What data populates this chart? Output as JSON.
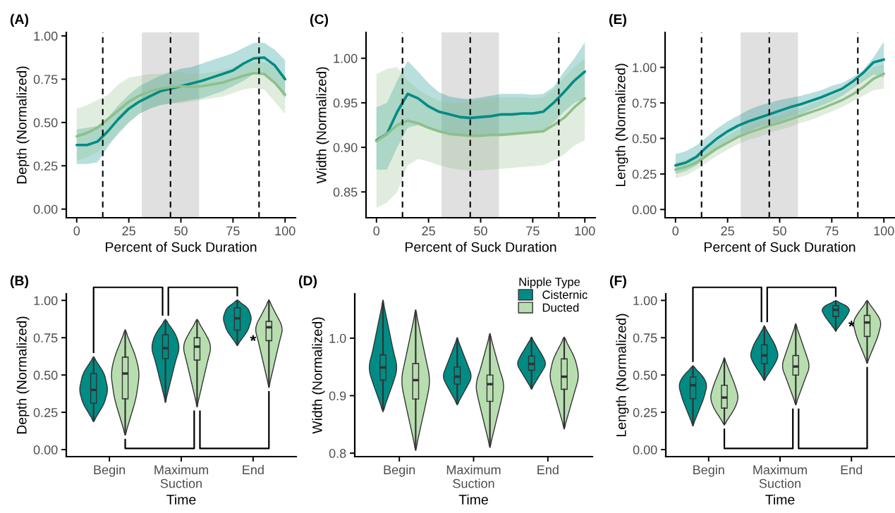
{
  "chart_data": [
    {
      "type": "line",
      "title": "(A)",
      "xlabel": "Percent of Suck Duration",
      "ylabel": "Depth (Normalized)",
      "xlim": [
        -5,
        105
      ],
      "xticks": [
        0,
        25,
        50,
        75,
        100
      ],
      "ylim": [
        -0.05,
        1.02
      ],
      "yticks": [
        {
          "value": 0,
          "label": "0.00"
        },
        {
          "value": 0.25,
          "label": "0.25"
        },
        {
          "value": 0.5,
          "label": "0.50"
        },
        {
          "value": 0.75,
          "label": "0.75"
        },
        {
          "value": 1,
          "label": "1.00"
        }
      ],
      "grid": false,
      "legend": false,
      "x": [
        0,
        5,
        10,
        15,
        20,
        25,
        30,
        35,
        40,
        45,
        50,
        55,
        60,
        65,
        70,
        75,
        80,
        85,
        90,
        95,
        100
      ],
      "series": [
        {
          "color": "#008b84",
          "values": [
            0.37,
            0.37,
            0.39,
            0.45,
            0.52,
            0.58,
            0.62,
            0.65,
            0.68,
            0.695,
            0.71,
            0.725,
            0.74,
            0.76,
            0.78,
            0.8,
            0.84,
            0.87,
            0.875,
            0.83,
            0.75
          ],
          "lower": [
            0.26,
            0.26,
            0.27,
            0.36,
            0.44,
            0.5,
            0.55,
            0.58,
            0.6,
            0.61,
            0.62,
            0.63,
            0.64,
            0.66,
            0.68,
            0.71,
            0.74,
            0.78,
            0.78,
            0.73,
            0.64
          ],
          "upper": [
            0.46,
            0.47,
            0.48,
            0.53,
            0.6,
            0.66,
            0.71,
            0.74,
            0.77,
            0.79,
            0.81,
            0.82,
            0.84,
            0.86,
            0.88,
            0.9,
            0.93,
            0.96,
            0.96,
            0.92,
            0.86
          ]
        },
        {
          "color": "#8fbf8a",
          "values": [
            0.42,
            0.44,
            0.47,
            0.52,
            0.57,
            0.62,
            0.655,
            0.68,
            0.695,
            0.705,
            0.71,
            0.705,
            0.71,
            0.72,
            0.73,
            0.75,
            0.77,
            0.785,
            0.78,
            0.73,
            0.66
          ],
          "lower": [
            0.28,
            0.3,
            0.33,
            0.38,
            0.43,
            0.5,
            0.55,
            0.58,
            0.6,
            0.61,
            0.61,
            0.62,
            0.63,
            0.64,
            0.65,
            0.67,
            0.69,
            0.7,
            0.69,
            0.62,
            0.55
          ],
          "upper": [
            0.58,
            0.6,
            0.63,
            0.66,
            0.72,
            0.76,
            0.77,
            0.78,
            0.78,
            0.79,
            0.79,
            0.78,
            0.78,
            0.79,
            0.8,
            0.82,
            0.84,
            0.85,
            0.85,
            0.82,
            0.77
          ]
        }
      ],
      "ref_lines": [
        {
          "axis": "x",
          "value": 12.5,
          "color": "#000000",
          "line_style": "dashed"
        },
        {
          "axis": "x",
          "value": 45,
          "color": "#000000",
          "line_style": "dashed"
        },
        {
          "axis": "x",
          "value": 87.5,
          "color": "#000000",
          "line_style": "dashed"
        }
      ],
      "bands": [
        {
          "axis": "x",
          "from": 31.25,
          "to": 58.75,
          "color": "#e0e0e0"
        }
      ]
    },
    {
      "type": "line",
      "title": "(C)",
      "xlabel": "Percent of Suck Duration",
      "ylabel": "Width (Normalized)",
      "xlim": [
        -5,
        105
      ],
      "xticks": [
        0,
        25,
        50,
        75,
        100
      ],
      "ylim": [
        0.821,
        1.029
      ],
      "yticks": [
        {
          "value": 0.85,
          "label": "0.85"
        },
        {
          "value": 0.9,
          "label": "0.90"
        },
        {
          "value": 0.95,
          "label": "0.95"
        },
        {
          "value": 1,
          "label": "1.00"
        }
      ],
      "grid": false,
      "legend": false,
      "x": [
        0,
        5,
        10,
        15,
        20,
        25,
        30,
        35,
        40,
        45,
        50,
        55,
        60,
        65,
        70,
        75,
        80,
        85,
        90,
        95,
        100
      ],
      "series": [
        {
          "color": "#008b84",
          "values": [
            0.908,
            0.915,
            0.94,
            0.96,
            0.955,
            0.946,
            0.94,
            0.937,
            0.934,
            0.933,
            0.934,
            0.935,
            0.937,
            0.937,
            0.938,
            0.938,
            0.94,
            0.95,
            0.962,
            0.975,
            0.985
          ],
          "lower": [
            0.875,
            0.875,
            0.9,
            0.922,
            0.925,
            0.921,
            0.918,
            0.915,
            0.913,
            0.912,
            0.912,
            0.913,
            0.914,
            0.915,
            0.916,
            0.917,
            0.918,
            0.928,
            0.94,
            0.95,
            0.955
          ],
          "upper": [
            0.945,
            0.95,
            0.975,
            0.997,
            0.985,
            0.972,
            0.962,
            0.957,
            0.955,
            0.954,
            0.956,
            0.958,
            0.96,
            0.96,
            0.96,
            0.959,
            0.96,
            0.968,
            0.985,
            1.0,
            1.018
          ]
        },
        {
          "color": "#8fbf8a",
          "values": [
            0.907,
            0.915,
            0.925,
            0.93,
            0.927,
            0.922,
            0.918,
            0.915,
            0.914,
            0.913,
            0.913,
            0.914,
            0.914,
            0.915,
            0.916,
            0.917,
            0.918,
            0.925,
            0.933,
            0.945,
            0.955
          ],
          "lower": [
            0.832,
            0.838,
            0.85,
            0.88,
            0.887,
            0.884,
            0.88,
            0.877,
            0.875,
            0.874,
            0.874,
            0.875,
            0.876,
            0.877,
            0.878,
            0.879,
            0.88,
            0.885,
            0.892,
            0.902,
            0.908
          ],
          "upper": [
            0.982,
            0.988,
            0.99,
            0.975,
            0.965,
            0.958,
            0.952,
            0.95,
            0.95,
            0.951,
            0.953,
            0.955,
            0.956,
            0.956,
            0.956,
            0.955,
            0.956,
            0.965,
            0.978,
            0.99,
            1.0
          ]
        }
      ],
      "ref_lines": [
        {
          "axis": "x",
          "value": 12.5,
          "color": "#000000",
          "line_style": "dashed"
        },
        {
          "axis": "x",
          "value": 45,
          "color": "#000000",
          "line_style": "dashed"
        },
        {
          "axis": "x",
          "value": 87.5,
          "color": "#000000",
          "line_style": "dashed"
        }
      ],
      "bands": [
        {
          "axis": "x",
          "from": 31.25,
          "to": 58.75,
          "color": "#e0e0e0"
        }
      ]
    },
    {
      "type": "line",
      "title": "(E)",
      "xlabel": "Percent of Suck Duration",
      "ylabel": "Length (Normalized)",
      "xlim": [
        -5,
        105
      ],
      "xticks": [
        0,
        25,
        50,
        75,
        100
      ],
      "ylim": [
        -0.058,
        1.246
      ],
      "yticks": [
        {
          "value": 0,
          "label": "0.00"
        },
        {
          "value": 0.25,
          "label": "0.25"
        },
        {
          "value": 0.5,
          "label": "0.50"
        },
        {
          "value": 0.75,
          "label": "0.75"
        },
        {
          "value": 1,
          "label": "1.00"
        }
      ],
      "grid": false,
      "legend": false,
      "x": [
        0,
        5,
        10,
        15,
        20,
        25,
        30,
        35,
        40,
        45,
        50,
        55,
        60,
        65,
        70,
        75,
        80,
        85,
        90,
        95,
        100
      ],
      "series": [
        {
          "color": "#008b84",
          "values": [
            0.31,
            0.33,
            0.37,
            0.44,
            0.5,
            0.55,
            0.59,
            0.62,
            0.645,
            0.67,
            0.695,
            0.72,
            0.74,
            0.765,
            0.79,
            0.82,
            0.85,
            0.9,
            0.96,
            1.035,
            1.055
          ],
          "lower": [
            0.25,
            0.27,
            0.31,
            0.37,
            0.43,
            0.48,
            0.52,
            0.55,
            0.58,
            0.6,
            0.62,
            0.65,
            0.67,
            0.7,
            0.73,
            0.76,
            0.8,
            0.85,
            0.9,
            0.95,
            0.93
          ],
          "upper": [
            0.39,
            0.41,
            0.45,
            0.51,
            0.57,
            0.62,
            0.66,
            0.7,
            0.73,
            0.75,
            0.77,
            0.785,
            0.8,
            0.82,
            0.84,
            0.87,
            0.89,
            0.93,
            0.98,
            1.07,
            1.18
          ]
        },
        {
          "color": "#8fbf8a",
          "values": [
            0.28,
            0.3,
            0.33,
            0.38,
            0.43,
            0.47,
            0.51,
            0.54,
            0.565,
            0.59,
            0.61,
            0.635,
            0.66,
            0.685,
            0.71,
            0.74,
            0.77,
            0.81,
            0.86,
            0.92,
            0.955
          ],
          "lower": [
            0.22,
            0.24,
            0.28,
            0.33,
            0.38,
            0.42,
            0.46,
            0.49,
            0.51,
            0.54,
            0.56,
            0.58,
            0.61,
            0.63,
            0.66,
            0.69,
            0.72,
            0.76,
            0.8,
            0.84,
            0.85
          ],
          "upper": [
            0.33,
            0.35,
            0.38,
            0.43,
            0.48,
            0.52,
            0.56,
            0.59,
            0.62,
            0.64,
            0.66,
            0.69,
            0.71,
            0.74,
            0.77,
            0.8,
            0.83,
            0.88,
            0.94,
            1.0,
            1.02
          ]
        }
      ],
      "ref_lines": [
        {
          "axis": "x",
          "value": 12.5,
          "color": "#000000",
          "line_style": "dashed"
        },
        {
          "axis": "x",
          "value": 45,
          "color": "#000000",
          "line_style": "dashed"
        },
        {
          "axis": "x",
          "value": 87.5,
          "color": "#000000",
          "line_style": "dashed"
        }
      ],
      "bands": [
        {
          "axis": "x",
          "from": 31.25,
          "to": 58.75,
          "color": "#e0e0e0"
        }
      ]
    },
    {
      "type": "box",
      "title": "(B)",
      "xlabel": "Time",
      "ylabel": "Depth (Normalized)",
      "categories": [
        "Begin",
        "Maximum\nSuction",
        "End"
      ],
      "ylim": [
        -0.047,
        1.044
      ],
      "yticks": [
        {
          "value": 0,
          "label": "0.00"
        },
        {
          "value": 0.25,
          "label": "0.25"
        },
        {
          "value": 0.5,
          "label": "0.50"
        },
        {
          "value": 0.75,
          "label": "0.75"
        },
        {
          "value": 1,
          "label": "1.00"
        }
      ],
      "grid": false,
      "legend": false,
      "series": [
        {
          "color": "#008b84",
          "boxes": [
            {
              "low": 0.19,
              "q1": 0.31,
              "median": 0.4,
              "q3": 0.51,
              "high": 0.62
            },
            {
              "low": 0.32,
              "q1": 0.61,
              "median": 0.68,
              "q3": 0.77,
              "high": 0.87
            },
            {
              "low": 0.7,
              "q1": 0.8,
              "median": 0.88,
              "q3": 0.95,
              "high": 1.0
            }
          ]
        },
        {
          "color": "#b8deb0",
          "boxes": [
            {
              "low": 0.1,
              "q1": 0.34,
              "median": 0.51,
              "q3": 0.62,
              "high": 0.8
            },
            {
              "low": 0.29,
              "q1": 0.6,
              "median": 0.69,
              "q3": 0.75,
              "high": 0.87
            },
            {
              "low": 0.42,
              "q1": 0.73,
              "median": 0.82,
              "q3": 0.86,
              "high": 1.0
            }
          ]
        }
      ],
      "annotations": [
        "*"
      ]
    },
    {
      "type": "box",
      "title": "(D)",
      "xlabel": "Time",
      "ylabel": "Width (Normalized)",
      "categories": [
        "Begin",
        "Maximum\nSuction",
        "End"
      ],
      "ylim": [
        0.794,
        1.077
      ],
      "yticks": [
        {
          "value": 0.8,
          "label": "0.8"
        },
        {
          "value": 0.9,
          "label": "0.9"
        },
        {
          "value": 1,
          "label": "1.0"
        }
      ],
      "grid": false,
      "legend": "top right",
      "legend_title": "Nipple Type",
      "series": [
        {
          "name": "Cisternic",
          "color": "#008b84",
          "boxes": [
            {
              "low": 0.873,
              "q1": 0.927,
              "median": 0.949,
              "q3": 0.971,
              "high": 1.065
            },
            {
              "low": 0.885,
              "q1": 0.92,
              "median": 0.933,
              "q3": 0.95,
              "high": 1.0
            },
            {
              "low": 0.912,
              "q1": 0.944,
              "median": 0.955,
              "q3": 0.969,
              "high": 1.001
            }
          ]
        },
        {
          "name": "Ducted",
          "color": "#b8deb0",
          "boxes": [
            {
              "low": 0.806,
              "q1": 0.894,
              "median": 0.927,
              "q3": 0.956,
              "high": 1.048
            },
            {
              "low": 0.811,
              "q1": 0.89,
              "median": 0.92,
              "q3": 0.936,
              "high": 1.007
            },
            {
              "low": 0.843,
              "q1": 0.911,
              "median": 0.933,
              "q3": 0.964,
              "high": 1.001
            }
          ]
        }
      ]
    },
    {
      "type": "box",
      "title": "(F)",
      "xlabel": "Time",
      "ylabel": "Length (Normalized)",
      "categories": [
        "Begin",
        "Maximum\nSuction",
        "End"
      ],
      "ylim": [
        -0.047,
        1.044
      ],
      "yticks": [
        {
          "value": 0,
          "label": "0.00"
        },
        {
          "value": 0.25,
          "label": "0.25"
        },
        {
          "value": 0.5,
          "label": "0.50"
        },
        {
          "value": 0.75,
          "label": "0.75"
        },
        {
          "value": 1,
          "label": "1.00"
        }
      ],
      "grid": false,
      "legend": false,
      "series": [
        {
          "color": "#008b84",
          "boxes": [
            {
              "low": 0.162,
              "q1": 0.341,
              "median": 0.432,
              "q3": 0.487,
              "high": 0.56
            },
            {
              "low": 0.466,
              "q1": 0.576,
              "median": 0.631,
              "q3": 0.703,
              "high": 0.827
            },
            {
              "low": 0.796,
              "q1": 0.892,
              "median": 0.937,
              "q3": 0.965,
              "high": 0.997
            }
          ]
        },
        {
          "color": "#b8deb0",
          "boxes": [
            {
              "low": 0.168,
              "q1": 0.278,
              "median": 0.349,
              "q3": 0.432,
              "high": 0.612
            },
            {
              "low": 0.303,
              "q1": 0.499,
              "median": 0.557,
              "q3": 0.631,
              "high": 0.84
            },
            {
              "low": 0.581,
              "q1": 0.758,
              "median": 0.852,
              "q3": 0.9,
              "high": 0.997
            }
          ]
        }
      ],
      "annotations": [
        "*"
      ]
    }
  ]
}
